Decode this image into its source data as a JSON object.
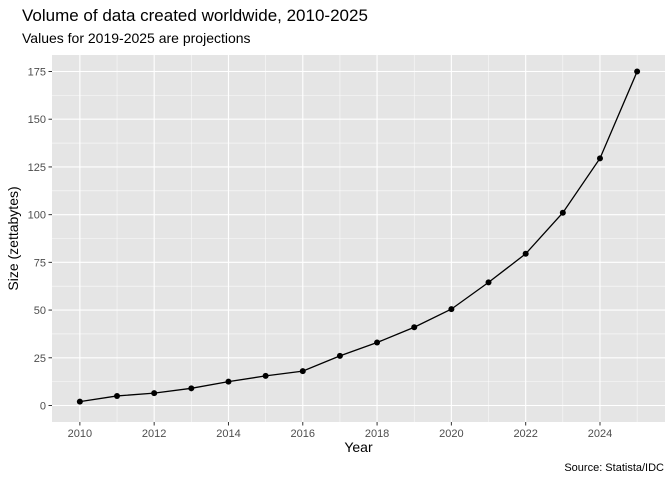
{
  "chart_data": {
    "type": "line",
    "title": "Volume of data created worldwide, 2010-2025",
    "subtitle": "Values for 2019-2025 are projections",
    "caption": "Source: Statista/IDC",
    "xlabel": "Year",
    "ylabel": "Size (zettabytes)",
    "x": [
      2010,
      2011,
      2012,
      2013,
      2014,
      2015,
      2016,
      2017,
      2018,
      2019,
      2020,
      2021,
      2022,
      2023,
      2024,
      2025
    ],
    "values": [
      2,
      5,
      6.5,
      9,
      12.5,
      15.5,
      18,
      26,
      33,
      41,
      50.5,
      64.5,
      79.5,
      101,
      129.5,
      175
    ],
    "xlim": [
      2009.25,
      2025.75
    ],
    "ylim": [
      -8.65,
      183.65
    ],
    "xticks": [
      "2010",
      "2012",
      "2014",
      "2016",
      "2018",
      "2020",
      "2022",
      "2024"
    ],
    "yticks": [
      "0",
      "25",
      "50",
      "75",
      "100",
      "125",
      "150",
      "175"
    ],
    "grid": true,
    "legend": "none",
    "colors": {
      "panel": "#e5e5e5",
      "grid_major": "#ffffff",
      "line": "#000000",
      "tick_text": "#4d4d4d",
      "tick_mark": "#333333"
    }
  }
}
